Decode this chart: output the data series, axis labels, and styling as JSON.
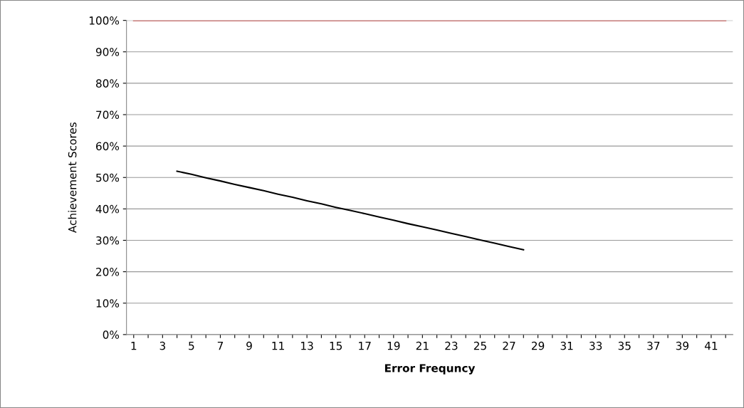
{
  "chart_data": {
    "type": "line",
    "xlabel": "Error Frequncy",
    "ylabel": "Achievement Scores",
    "categories": [
      "1",
      null,
      "3",
      null,
      "5",
      null,
      "7",
      null,
      "9",
      null,
      "11",
      null,
      "13",
      null,
      "15",
      null,
      "17",
      null,
      "19",
      null,
      "21",
      null,
      "23",
      null,
      "25",
      null,
      "27",
      null,
      "29",
      null,
      "31",
      null,
      "33",
      null,
      "35",
      null,
      "37",
      null,
      "39",
      null,
      "41",
      null
    ],
    "series": [
      {
        "color": "#c0504d",
        "values": [
          100,
          100,
          100,
          100,
          100,
          100,
          100,
          100,
          100,
          100,
          100,
          100,
          100,
          100,
          100,
          100,
          100,
          100,
          100,
          100,
          100,
          100,
          100,
          100,
          100,
          100,
          100,
          100,
          100,
          100,
          100,
          100,
          100,
          100,
          100,
          100,
          100,
          100,
          100,
          100,
          100,
          100
        ]
      },
      {
        "color": "#000000",
        "values": [
          null,
          null,
          null,
          52,
          51,
          49.9,
          48.9,
          47.8,
          46.8,
          45.8,
          44.7,
          43.7,
          42.6,
          41.6,
          40.5,
          39.5,
          38.5,
          37.4,
          36.4,
          35.3,
          34.3,
          33.3,
          32.2,
          31.2,
          30.1,
          29.1,
          28,
          27,
          null,
          null,
          null,
          null,
          null,
          null,
          null,
          null,
          null,
          null,
          null,
          null,
          null,
          null
        ]
      }
    ],
    "ylim": [
      0,
      100
    ],
    "yticks": [
      {
        "value": 0,
        "label": "0%"
      },
      {
        "value": 10,
        "label": "10%"
      },
      {
        "value": 20,
        "label": "20%"
      },
      {
        "value": 30,
        "label": "30%"
      },
      {
        "value": 40,
        "label": "40%"
      },
      {
        "value": 50,
        "label": "50%"
      },
      {
        "value": 60,
        "label": "60%"
      },
      {
        "value": 70,
        "label": "70%"
      },
      {
        "value": 80,
        "label": "80%"
      },
      {
        "value": 90,
        "label": "90%"
      },
      {
        "value": 100,
        "label": "100%"
      }
    ],
    "grid": "y",
    "legend": false,
    "marker": "none",
    "line_style": "solid"
  }
}
